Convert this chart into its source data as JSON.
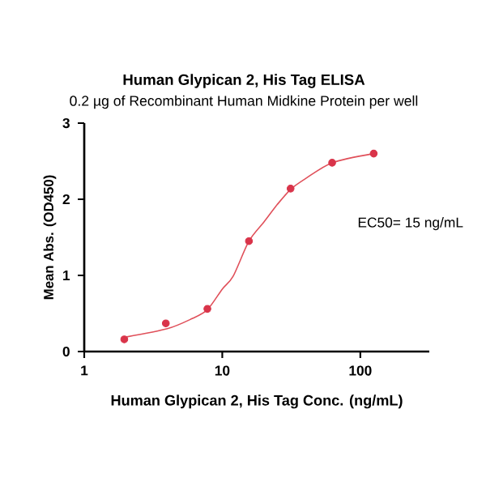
{
  "chart_data": {
    "type": "scatter",
    "title": "Human Glypican 2, His Tag ELISA",
    "subtitle": "0.2 µg of Recombinant Human Midkine Protein per well",
    "xlabel": "Human Glypican 2, His Tag Conc. (ng/mL)",
    "ylabel": "Mean Abs. (OD450)",
    "log": "x",
    "xlim": [
      1,
      316
    ],
    "xticks": [
      1,
      10,
      100
    ],
    "ylim": [
      0,
      3
    ],
    "yticks": [
      0,
      1,
      2,
      3
    ],
    "marker": "circle",
    "annotations": [
      "EC50= 15 ng/mL"
    ],
    "series": [
      {
        "type": "line",
        "color": "#e0505a",
        "marker": "none",
        "x": [
          2,
          4,
          6,
          7.8,
          10,
          12,
          15.6,
          20,
          25,
          31.25,
          40,
          62.5,
          125
        ],
        "values": [
          0.19,
          0.3,
          0.43,
          0.55,
          0.82,
          0.99,
          1.45,
          1.7,
          1.93,
          2.13,
          2.27,
          2.48,
          2.6
        ]
      },
      {
        "color": "#d9344a",
        "x": [
          1.95,
          3.9,
          7.8,
          15.6,
          31.25,
          62.5,
          125
        ],
        "values": [
          0.16,
          0.37,
          0.56,
          1.45,
          2.14,
          2.48,
          2.6
        ]
      }
    ]
  }
}
